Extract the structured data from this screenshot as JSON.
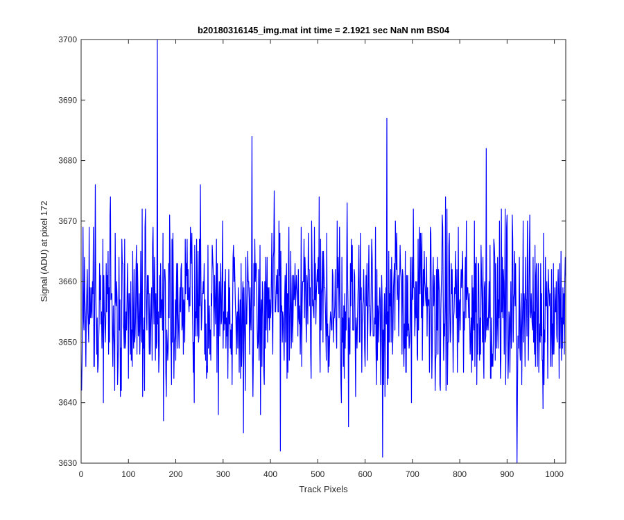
{
  "chart_data": {
    "type": "line",
    "title": "b20180316145_img.mat int time = 2.1921 sec  NaN nm BS04",
    "xlabel": "Track Pixels",
    "ylabel": "Signal (ADU) at pixel 172",
    "xlim": [
      0,
      1024
    ],
    "ylim": [
      3630,
      3700
    ],
    "xticks": [
      0,
      100,
      200,
      300,
      400,
      500,
      600,
      700,
      800,
      900,
      1000
    ],
    "yticks": [
      3630,
      3640,
      3650,
      3660,
      3670,
      3680,
      3690,
      3700
    ],
    "grid": false,
    "legend": "none",
    "series_color": "#0000ff",
    "noise_center": 3656,
    "noise_spread": 7.5,
    "samples": 1024,
    "notable_points": [
      {
        "x": 160,
        "y": 3700
      },
      {
        "x": 360,
        "y": 3684
      },
      {
        "x": 420,
        "y": 3632
      },
      {
        "x": 636,
        "y": 3631
      },
      {
        "x": 645,
        "y": 3687
      },
      {
        "x": 855,
        "y": 3682
      },
      {
        "x": 920,
        "y": 3630
      }
    ]
  }
}
